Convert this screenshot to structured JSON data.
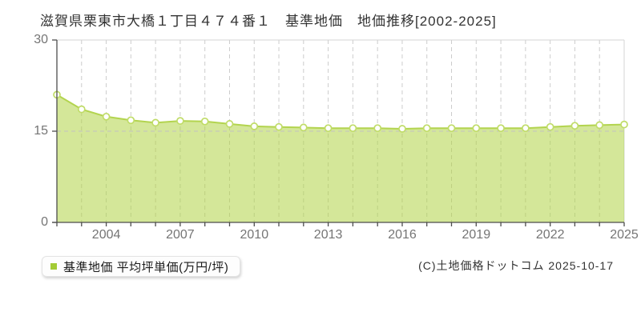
{
  "title": "滋賀県栗東市大橋１丁目４７４番１　基準地価　地価推移[2002-2025]",
  "legend": {
    "label": "基準地価 平均坪単価(万円/坪)",
    "swatch_color": "#a3cb35"
  },
  "footer": {
    "credit": "(C)土地価格ドットコム 2025-10-17"
  },
  "chart_data": {
    "type": "area",
    "title": "滋賀県栗東市大橋１丁目４７４番１ 基準地価 地価推移[2002-2025]",
    "series_name": "基準地価 平均坪単価(万円/坪)",
    "x": [
      2002,
      2003,
      2004,
      2005,
      2006,
      2007,
      2008,
      2009,
      2010,
      2011,
      2012,
      2013,
      2014,
      2015,
      2016,
      2017,
      2018,
      2019,
      2020,
      2021,
      2022,
      2023,
      2024,
      2025
    ],
    "values": [
      21.0,
      18.6,
      17.4,
      16.8,
      16.4,
      16.7,
      16.6,
      16.2,
      15.8,
      15.7,
      15.6,
      15.5,
      15.5,
      15.5,
      15.4,
      15.5,
      15.5,
      15.5,
      15.5,
      15.5,
      15.7,
      15.9,
      16.0,
      16.1
    ],
    "ylabel": "平均坪単価(万円/坪)",
    "xlabel": "",
    "ylim": [
      0,
      30
    ],
    "yticks": [
      0,
      15,
      30
    ],
    "xtick_labels": [
      "2004",
      "2007",
      "2010",
      "2013",
      "2016",
      "2019",
      "2022",
      "2025"
    ],
    "grid": true,
    "legend_position": "bottom-left",
    "colors": {
      "line": "#b3d44f",
      "point_stroke": "#c0dc68",
      "point_fill": "#ffffff",
      "fill": "rgba(176,211,69,0.55)",
      "grid": "#cccccc",
      "border": "#d4d4d4",
      "axis": "#4d4d4d",
      "tick_text": "#757575"
    }
  }
}
